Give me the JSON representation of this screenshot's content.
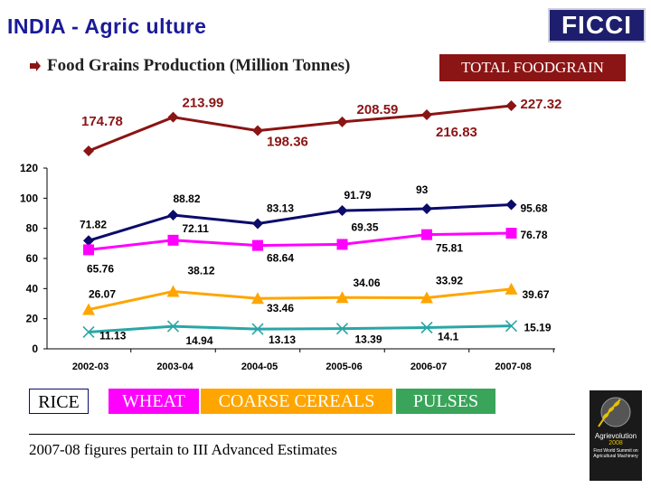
{
  "header": {
    "title": "INDIA - Agric ulture",
    "logo": "FICCI",
    "subtitle": "Food Grains Production (Million Tonnes)",
    "total_box": "TOTAL FOODGRAIN"
  },
  "legend": {
    "rice": "RICE",
    "wheat": "WHEAT",
    "coarse": "COARSE CEREALS",
    "pulses": "PULSES"
  },
  "footnote": "2007-08 figures pertain to III Advanced Estimates",
  "badge": {
    "name": "Agrievolution",
    "year": "2008",
    "tagline": "First World Summit on Agricultural Machinery"
  },
  "icons": {
    "bullet": "arrow-bullet-icon",
    "badge_emblem": "wheat-globe-icon"
  },
  "chart_data": [
    {
      "type": "line",
      "categories": [
        "2002-03",
        "2003-04",
        "2004-05",
        "2005-06",
        "2006-07",
        "2007-08"
      ],
      "series": [
        {
          "name": "TOTAL FOODGRAIN",
          "color": "#8b1414",
          "marker": "diamond",
          "values": [
            174.78,
            213.99,
            198.36,
            208.59,
            216.83,
            227.32
          ],
          "labels": [
            "174.78",
            "213.99",
            "198.36",
            "208.59",
            "216.83",
            "227.32"
          ]
        }
      ]
    },
    {
      "type": "line",
      "categories": [
        "2002-03",
        "2003-04",
        "2004-05",
        "2005-06",
        "2006-07",
        "2007-08"
      ],
      "ylim": [
        0,
        120
      ],
      "yticks": [
        "0",
        "20",
        "40",
        "60",
        "80",
        "100",
        "120"
      ],
      "series": [
        {
          "name": "RICE",
          "color": "#0b0b6b",
          "marker": "diamond",
          "values": [
            71.82,
            88.82,
            83.13,
            91.79,
            93,
            95.68
          ],
          "labels": [
            "71.82",
            "88.82",
            "83.13",
            "91.79",
            "93",
            "95.68"
          ]
        },
        {
          "name": "WHEAT",
          "color": "#ff00ff",
          "marker": "square",
          "values": [
            65.76,
            72.11,
            68.64,
            69.35,
            75.81,
            76.78
          ],
          "labels": [
            "65.76",
            "72.11",
            "68.64",
            "69.35",
            "75.81",
            "76.78"
          ]
        },
        {
          "name": "COARSE CEREALS",
          "color": "#ffa500",
          "marker": "triangle",
          "values": [
            26.07,
            38.12,
            33.46,
            34.06,
            33.92,
            39.67
          ],
          "labels": [
            "26.07",
            "38.12",
            "33.46",
            "34.06",
            "33.92",
            "39.67"
          ]
        },
        {
          "name": "PULSES",
          "color": "#2aa6a6",
          "marker": "x",
          "values": [
            11.13,
            14.94,
            13.13,
            13.39,
            14.1,
            15.19
          ],
          "labels": [
            "11.13",
            "14.94",
            "13.13",
            "13.39",
            "14.1",
            "15.19"
          ]
        }
      ]
    }
  ]
}
